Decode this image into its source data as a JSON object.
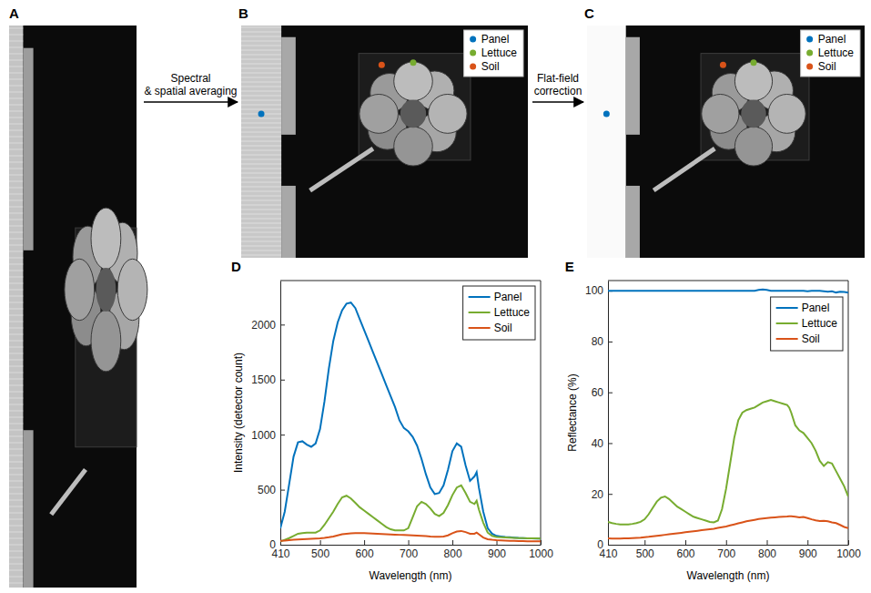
{
  "images": [
    {
      "letter": "A"
    },
    {
      "letter": "B",
      "legend": [
        {
          "name": "Panel",
          "color": "#0072bd"
        },
        {
          "name": "Lettuce",
          "color": "#77ac30"
        },
        {
          "name": "Soil",
          "color": "#d95319"
        }
      ]
    },
    {
      "letter": "C",
      "legend": [
        {
          "name": "Panel",
          "color": "#0072bd"
        },
        {
          "name": "Lettuce",
          "color": "#77ac30"
        },
        {
          "name": "Soil",
          "color": "#d95319"
        }
      ]
    }
  ],
  "arrows": [
    {
      "label_lines": [
        "Spectral",
        "& spatial averaging"
      ]
    },
    {
      "label_lines": [
        "Flat-field",
        "correction"
      ]
    }
  ],
  "chart_data": [
    {
      "type": "line",
      "panel_label": "D",
      "x_label": "Wavelength (nm)",
      "y_label": "Intensity (detector count)",
      "x": [
        410,
        420,
        430,
        440,
        450,
        460,
        470,
        480,
        490,
        500,
        510,
        520,
        530,
        540,
        550,
        560,
        570,
        580,
        590,
        600,
        610,
        620,
        630,
        640,
        650,
        660,
        670,
        680,
        690,
        700,
        710,
        720,
        730,
        740,
        750,
        760,
        770,
        780,
        790,
        800,
        810,
        820,
        830,
        840,
        850,
        855,
        860,
        870,
        880,
        890,
        900,
        910,
        920,
        930,
        940,
        950,
        960,
        970,
        980,
        990,
        1000
      ],
      "series": [
        {
          "name": "Panel",
          "color": "#0072bd",
          "values": [
            150,
            300,
            550,
            800,
            930,
            940,
            910,
            890,
            920,
            1050,
            1300,
            1600,
            1850,
            2020,
            2130,
            2190,
            2200,
            2150,
            2050,
            1950,
            1850,
            1750,
            1650,
            1550,
            1450,
            1350,
            1250,
            1130,
            1060,
            1030,
            980,
            900,
            780,
            640,
            520,
            460,
            470,
            540,
            680,
            850,
            920,
            890,
            720,
            580,
            620,
            660,
            520,
            300,
            150,
            100,
            80,
            75,
            70,
            68,
            65,
            62,
            60,
            58,
            57,
            56,
            55
          ]
        },
        {
          "name": "Lettuce",
          "color": "#77ac30",
          "values": [
            30,
            45,
            60,
            80,
            100,
            105,
            110,
            110,
            110,
            130,
            180,
            240,
            300,
            370,
            430,
            445,
            420,
            380,
            340,
            310,
            280,
            250,
            220,
            190,
            160,
            140,
            130,
            130,
            130,
            150,
            250,
            350,
            390,
            370,
            330,
            280,
            260,
            290,
            360,
            450,
            520,
            540,
            470,
            390,
            370,
            400,
            320,
            200,
            110,
            80,
            70,
            68,
            66,
            64,
            62,
            60,
            60,
            58,
            58,
            57,
            56
          ]
        },
        {
          "name": "Soil",
          "color": "#d95319",
          "values": [
            35,
            38,
            42,
            45,
            48,
            50,
            52,
            54,
            56,
            58,
            62,
            68,
            75,
            85,
            95,
            100,
            103,
            105,
            105,
            105,
            104,
            102,
            100,
            98,
            96,
            94,
            92,
            90,
            88,
            86,
            84,
            82,
            80,
            78,
            74,
            72,
            72,
            75,
            85,
            105,
            120,
            125,
            115,
            100,
            100,
            110,
            95,
            65,
            50,
            45,
            42,
            40,
            38,
            36,
            35,
            34,
            33,
            32,
            32,
            31,
            30
          ]
        }
      ],
      "xlim": [
        410,
        1000
      ],
      "xticks": [
        410,
        500,
        600,
        700,
        800,
        900,
        1000
      ],
      "ylim": [
        0,
        2400
      ],
      "yticks": [
        0,
        500,
        1000,
        1500,
        2000
      ],
      "grid": false,
      "legend": "upper right"
    },
    {
      "type": "line",
      "panel_label": "E",
      "x_label": "Wavelength (nm)",
      "y_label": "Reflectance (%)",
      "x": [
        410,
        420,
        430,
        440,
        450,
        460,
        470,
        480,
        490,
        500,
        510,
        520,
        530,
        540,
        550,
        560,
        570,
        580,
        590,
        600,
        610,
        620,
        630,
        640,
        650,
        660,
        670,
        680,
        690,
        700,
        710,
        720,
        730,
        740,
        750,
        760,
        770,
        780,
        790,
        800,
        810,
        820,
        830,
        840,
        850,
        855,
        860,
        870,
        880,
        890,
        900,
        910,
        920,
        930,
        940,
        950,
        960,
        970,
        980,
        990,
        1000
      ],
      "series": [
        {
          "name": "Panel",
          "color": "#0072bd",
          "values": [
            100,
            100,
            100,
            100,
            100,
            100,
            100,
            100,
            100,
            100,
            100,
            100,
            100,
            100,
            100,
            100,
            100,
            100,
            100,
            100,
            100,
            100,
            100,
            100,
            100,
            100,
            100,
            100,
            100,
            100,
            100,
            100,
            100,
            100,
            100,
            100,
            100,
            100.3,
            100.5,
            100.3,
            100,
            100,
            100,
            100,
            100,
            100,
            100,
            100,
            100,
            100,
            99.8,
            100,
            100,
            100,
            99.8,
            99.6,
            99.8,
            99.3,
            99.6,
            99.5,
            99.2
          ]
        },
        {
          "name": "Lettuce",
          "color": "#77ac30",
          "values": [
            9,
            8.5,
            8.2,
            8,
            8,
            8,
            8.2,
            8.5,
            9,
            10,
            12,
            14.5,
            17,
            18.5,
            19,
            18,
            16.5,
            15,
            14,
            13,
            12,
            11,
            10.5,
            10,
            9.5,
            9,
            8.8,
            9.5,
            14,
            22,
            32,
            42,
            49,
            52,
            53,
            53.5,
            54,
            55,
            56,
            56.5,
            57,
            56.5,
            56,
            55.5,
            55,
            54,
            52,
            47,
            45,
            44,
            42,
            40,
            37,
            33,
            31,
            32.5,
            32,
            29,
            26,
            23,
            19
          ]
        },
        {
          "name": "Soil",
          "color": "#d95319",
          "values": [
            2.5,
            2.4,
            2.4,
            2.4,
            2.5,
            2.5,
            2.6,
            2.7,
            2.8,
            3.0,
            3.1,
            3.3,
            3.5,
            3.7,
            3.9,
            4.1,
            4.3,
            4.5,
            4.7,
            4.9,
            5.1,
            5.3,
            5.5,
            5.7,
            5.9,
            6.1,
            6.3,
            6.6,
            6.9,
            7.2,
            7.6,
            8.0,
            8.4,
            8.8,
            9.2,
            9.5,
            9.8,
            10.1,
            10.3,
            10.5,
            10.7,
            10.8,
            10.9,
            11.0,
            11.1,
            11.2,
            11.2,
            11.0,
            10.8,
            10.9,
            10.5,
            10.0,
            9.6,
            9.3,
            9.4,
            9.2,
            8.8,
            8.5,
            7.8,
            7.0,
            6.5
          ]
        }
      ],
      "xlim": [
        410,
        1000
      ],
      "xticks": [
        410,
        500,
        600,
        700,
        800,
        900,
        1000
      ],
      "ylim": [
        0,
        104
      ],
      "yticks": [
        0,
        20,
        40,
        60,
        80,
        100
      ],
      "grid": false,
      "legend": "upper right"
    }
  ]
}
